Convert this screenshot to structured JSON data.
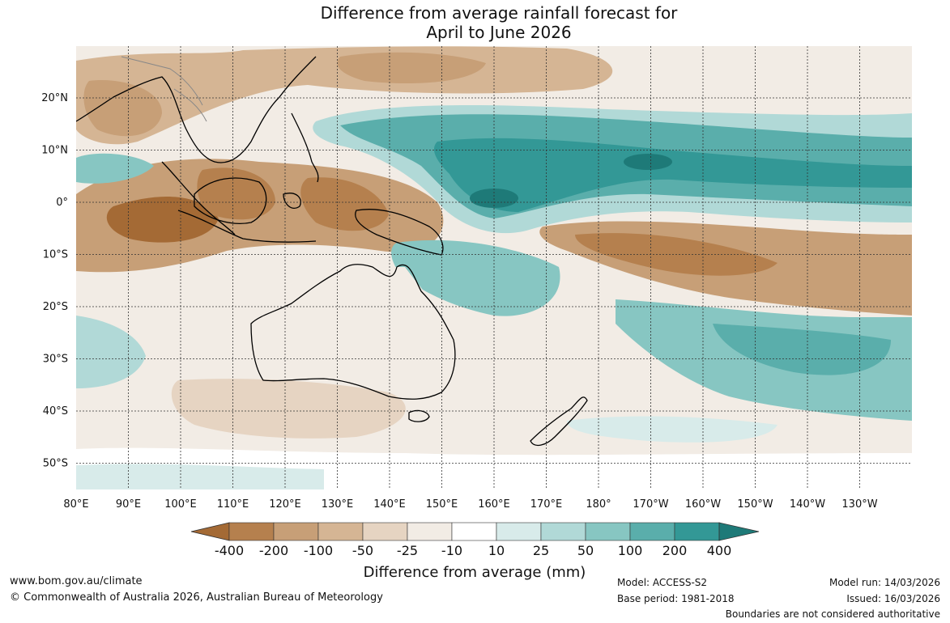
{
  "title": {
    "line1": "Difference from average rainfall forecast for",
    "line2": "April to June 2026"
  },
  "axes": {
    "longitude_labels": [
      "80°E",
      "90°E",
      "100°E",
      "110°E",
      "120°E",
      "130°E",
      "140°E",
      "150°E",
      "160°E",
      "170°E",
      "180°",
      "170°W",
      "160°W",
      "150°W",
      "140°W",
      "130°W"
    ],
    "latitude_labels": [
      "20°N",
      "10°N",
      "0°",
      "10°S",
      "20°S",
      "30°S",
      "40°S",
      "50°S"
    ]
  },
  "colorbar": {
    "title": "Difference from average (mm)",
    "tick_labels": [
      "-400",
      "-200",
      "-100",
      "-50",
      "-25",
      "-10",
      "10",
      "25",
      "50",
      "100",
      "200",
      "400"
    ],
    "colors": [
      "#a46a35",
      "#b5804e",
      "#c79f77",
      "#d5b594",
      "#e6d4c2",
      "#f2ece5",
      "#ffffff",
      "#d8ebea",
      "#b1d9d7",
      "#87c6c2",
      "#5aaeab",
      "#339896",
      "#1e7a78"
    ]
  },
  "footer": {
    "website": "www.bom.gov.au/climate",
    "copyright": "© Commonwealth of Australia 2026, Australian Bureau of Meteorology",
    "model": "Model: ACCESS-S2",
    "base_period": "Base period: 1981-2018",
    "model_run": "Model run: 14/03/2026",
    "issued": "Issued: 16/03/2026",
    "disclaimer": "Boundaries are not considered authoritative"
  }
}
